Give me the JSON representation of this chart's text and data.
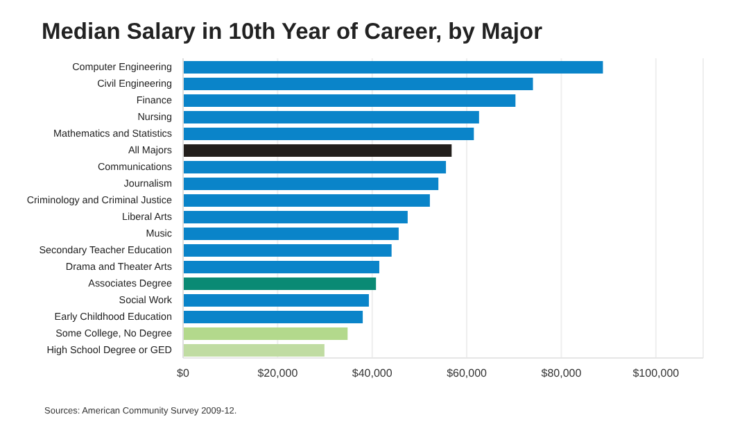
{
  "chart_data": {
    "type": "bar",
    "orientation": "horizontal",
    "title": "Median Salary in 10th Year of Career, by Major",
    "categories": [
      "Computer Engineering",
      "Civil Engineering",
      "Finance",
      "Nursing",
      "Mathematics and Statistics",
      "All Majors",
      "Communications",
      "Journalism",
      "Criminology and Criminal Justice",
      "Liberal Arts",
      "Music",
      "Secondary Teacher Education",
      "Drama and Theater Arts",
      "Associates Degree",
      "Social Work",
      "Early Childhood Education",
      "Some College, No Degree",
      "High School Degree or GED"
    ],
    "values": [
      88800,
      74000,
      70300,
      62600,
      61500,
      56800,
      55600,
      54000,
      52200,
      47500,
      45600,
      44100,
      41500,
      40800,
      39300,
      38000,
      34800,
      29900
    ],
    "colors": [
      "#0a84c9",
      "#0a84c9",
      "#0a84c9",
      "#0a84c9",
      "#0a84c9",
      "#231f1c",
      "#0a84c9",
      "#0a84c9",
      "#0a84c9",
      "#0a84c9",
      "#0a84c9",
      "#0a84c9",
      "#0a84c9",
      "#0a8a74",
      "#0a84c9",
      "#0a84c9",
      "#b3d98c",
      "#c0dca2"
    ],
    "xlim": [
      0,
      110000
    ],
    "xticks": [
      {
        "value": 0,
        "label": "$0"
      },
      {
        "value": 20000,
        "label": "$20,000"
      },
      {
        "value": 40000,
        "label": "$40,000"
      },
      {
        "value": 60000,
        "label": "$60,000"
      },
      {
        "value": 80000,
        "label": "$80,000"
      },
      {
        "value": 100000,
        "label": "$100,000"
      }
    ],
    "grid": "x",
    "legend": false,
    "annotations": [
      "Sources: American Community Survey 2009-12."
    ]
  }
}
